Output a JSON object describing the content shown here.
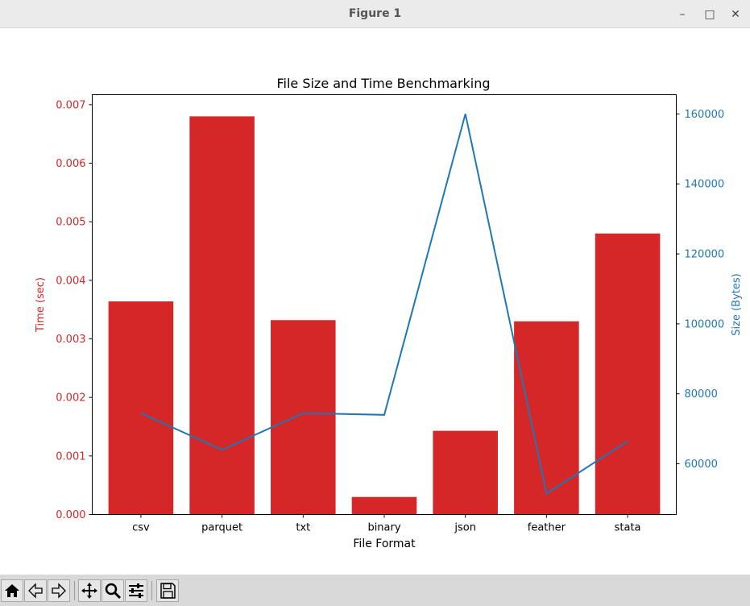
{
  "window": {
    "title": "Figure 1",
    "minimize_icon": "minimize-icon",
    "maximize_icon": "maximize-icon",
    "close_icon": "close-icon"
  },
  "toolbar": {
    "buttons": [
      "home-icon",
      "back-arrow-icon",
      "forward-arrow-icon",
      "pan-icon",
      "zoom-icon",
      "configure-subplots-icon",
      "save-icon"
    ]
  },
  "chart_data": {
    "type": "bar",
    "title": "File Size and Time Benchmarking",
    "xlabel": "File Format",
    "categories": [
      "csv",
      "parquet",
      "txt",
      "binary",
      "json",
      "feather",
      "stata"
    ],
    "left_axis": {
      "label": "Time (sec)",
      "color": "#d62728",
      "ylim": [
        0,
        0.00717
      ],
      "ticks": [
        "0.000",
        "0.001",
        "0.002",
        "0.003",
        "0.004",
        "0.005",
        "0.006",
        "0.007"
      ]
    },
    "right_axis": {
      "label": "Size (Bytes)",
      "color": "#1f77b4",
      "ylim": [
        45500,
        165500
      ],
      "ticks": [
        "60000",
        "80000",
        "100000",
        "120000",
        "140000",
        "160000"
      ]
    },
    "series": [
      {
        "type": "bar",
        "axis": "left",
        "color": "#d62728",
        "values": [
          0.00364,
          0.0068,
          0.00332,
          0.0003,
          0.00143,
          0.0033,
          0.0048
        ]
      },
      {
        "type": "line",
        "axis": "right",
        "color": "#1f77b4",
        "values": [
          74500,
          64000,
          74500,
          74000,
          160000,
          51500,
          66500
        ]
      }
    ],
    "grid": false,
    "legend": "none"
  }
}
